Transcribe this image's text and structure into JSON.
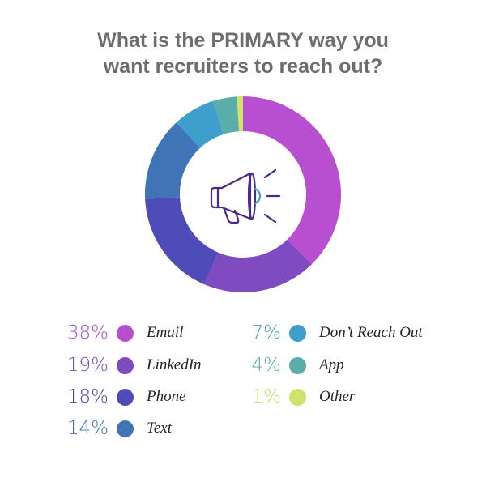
{
  "title": "What is the PRIMARY way you\nwant recruiters to reach out?",
  "chart_data": {
    "type": "pie",
    "title": "What is the PRIMARY way you\nwant recruiters to reach out?",
    "center_icon": "megaphone-icon",
    "slices": [
      {
        "label": "Email",
        "value": 38,
        "pct_label": "38%",
        "color": "#b84fd0",
        "pct_color": "#a44ec9"
      },
      {
        "label": "LinkedIn",
        "value": 19,
        "pct_label": "19%",
        "color": "#7e4bc1",
        "pct_color": "#7a4cbe"
      },
      {
        "label": "Phone",
        "value": 18,
        "pct_label": "18%",
        "color": "#4f4bb8",
        "pct_color": "#4c48b3"
      },
      {
        "label": "Text",
        "value": 14,
        "pct_label": "14%",
        "color": "#3f74b6",
        "pct_color": "#3d73b6"
      },
      {
        "label": "Don’t Reach Out",
        "value": 7,
        "pct_label": "7%",
        "color": "#3f9fcc",
        "pct_color": "#3d9dca"
      },
      {
        "label": "App",
        "value": 4,
        "pct_label": "4%",
        "color": "#5aaea9",
        "pct_color": "#58aba6"
      },
      {
        "label": "Other",
        "value": 1,
        "pct_label": "1%",
        "color": "#cfe269",
        "pct_color": "#c7da66"
      }
    ]
  }
}
